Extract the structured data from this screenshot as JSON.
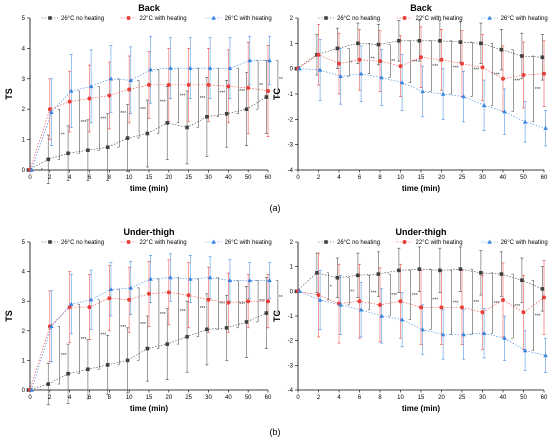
{
  "figure": {
    "sublabels": [
      "(a)",
      "(b)"
    ],
    "colors": {
      "no_heat": "#404040",
      "heat22": "#e8403a",
      "heat26": "#3a85e0"
    },
    "x_ticks": [
      0,
      2,
      4,
      6,
      8,
      10,
      15,
      20,
      25,
      30,
      40,
      50,
      60
    ]
  },
  "chart_data": [
    {
      "type": "line",
      "title": "Back",
      "xlabel": "time (min)",
      "ylabel": "TS",
      "ylim": [
        0,
        5
      ],
      "yticks": [
        0,
        1,
        2,
        3,
        4,
        5
      ],
      "x": [
        0,
        2,
        4,
        6,
        8,
        10,
        15,
        20,
        25,
        30,
        40,
        50,
        60
      ],
      "series": [
        {
          "name": "26°C no heating",
          "values": [
            0,
            0.35,
            0.55,
            0.65,
            0.75,
            1.05,
            1.2,
            1.55,
            1.4,
            1.75,
            1.85,
            2.0,
            2.4
          ],
          "err": [
            0,
            0.8,
            0.9,
            1.0,
            1.1,
            1.1,
            1.1,
            1.2,
            1.2,
            1.3,
            1.1,
            1.2,
            1.2
          ]
        },
        {
          "name": "22°C with heating",
          "values": [
            0,
            2.0,
            2.25,
            2.35,
            2.45,
            2.65,
            2.8,
            2.8,
            2.8,
            2.8,
            2.75,
            2.7,
            2.6
          ],
          "err": [
            0,
            1.0,
            1.0,
            1.1,
            1.1,
            1.1,
            1.1,
            1.2,
            1.2,
            1.2,
            1.2,
            1.5,
            1.5
          ]
        },
        {
          "name": "26°C with heating",
          "values": [
            0,
            1.9,
            2.6,
            2.75,
            3.0,
            2.95,
            3.3,
            3.35,
            3.35,
            3.35,
            3.35,
            3.6,
            3.6
          ],
          "err": [
            0,
            1.1,
            1.2,
            1.2,
            1.1,
            1.1,
            1.1,
            1.0,
            1.0,
            1.0,
            1.0,
            0.8,
            0.8
          ]
        }
      ],
      "annotations": [
        "*",
        "**",
        "***",
        "***",
        "***",
        "***",
        "***",
        "***",
        "***",
        "***",
        "***",
        "**",
        "**"
      ]
    },
    {
      "type": "line",
      "title": "Back",
      "xlabel": "time (min)",
      "ylabel": "TC",
      "ylim": [
        -4,
        2
      ],
      "yticks": [
        -4,
        -3,
        -2,
        -1,
        0,
        1,
        2
      ],
      "x": [
        0,
        2,
        4,
        6,
        8,
        10,
        15,
        20,
        25,
        30,
        40,
        50,
        60
      ],
      "series": [
        {
          "name": "26°C no heating",
          "values": [
            0,
            0.55,
            0.8,
            1.0,
            0.95,
            1.1,
            1.1,
            1.1,
            1.05,
            1.0,
            0.75,
            0.5,
            0.45
          ],
          "err": [
            0,
            0.8,
            0.8,
            0.8,
            0.8,
            0.8,
            0.8,
            0.8,
            0.8,
            0.8,
            0.8,
            0.9,
            0.9
          ]
        },
        {
          "name": "22°C with heating",
          "values": [
            0,
            0.55,
            0.2,
            0.35,
            0.3,
            0.1,
            0.45,
            0.35,
            0.2,
            0.05,
            -0.4,
            -0.25,
            -0.2
          ],
          "err": [
            0,
            1.2,
            1.2,
            1.2,
            1.2,
            1.2,
            1.2,
            1.2,
            1.3,
            1.3,
            1.3,
            1.3,
            1.3
          ]
        },
        {
          "name": "26°C with heating",
          "values": [
            0,
            -0.05,
            -0.3,
            -0.2,
            -0.35,
            -0.55,
            -0.9,
            -1.0,
            -1.1,
            -1.45,
            -1.7,
            -2.1,
            -2.35
          ],
          "err": [
            0,
            1.2,
            1.1,
            1.1,
            1.1,
            1.1,
            1.0,
            1.0,
            1.0,
            1.0,
            0.9,
            0.8,
            0.7
          ]
        }
      ],
      "annotations": [
        "",
        "",
        "*",
        "**",
        "**",
        "***",
        "***",
        "***",
        "***",
        "***",
        "***",
        "***",
        "***"
      ]
    },
    {
      "type": "line",
      "title": "Under-thigh",
      "xlabel": "time (min)",
      "ylabel": "TS",
      "ylim": [
        0,
        5
      ],
      "yticks": [
        0,
        1,
        2,
        3,
        4,
        5
      ],
      "x": [
        0,
        2,
        4,
        6,
        8,
        10,
        15,
        20,
        25,
        30,
        40,
        50,
        60
      ],
      "series": [
        {
          "name": "26°C no heating",
          "values": [
            0,
            0.2,
            0.55,
            0.7,
            0.85,
            1.0,
            1.4,
            1.55,
            1.8,
            2.05,
            2.1,
            2.3,
            2.6
          ],
          "err": [
            0,
            0.7,
            1.0,
            1.0,
            1.0,
            1.1,
            1.1,
            1.2,
            1.2,
            1.2,
            1.1,
            1.2,
            1.2
          ]
        },
        {
          "name": "22°C with heating",
          "values": [
            0,
            2.15,
            2.8,
            2.8,
            3.1,
            3.05,
            3.25,
            3.3,
            3.2,
            3.05,
            2.95,
            3.0,
            3.0
          ],
          "err": [
            0,
            1.2,
            1.2,
            1.1,
            1.1,
            1.1,
            1.1,
            1.1,
            1.1,
            1.1,
            1.0,
            0.9,
            0.9
          ]
        },
        {
          "name": "26°C with heating",
          "values": [
            0,
            2.15,
            2.9,
            3.05,
            3.4,
            3.45,
            3.75,
            3.8,
            3.75,
            3.8,
            3.7,
            3.7,
            3.7
          ],
          "err": [
            0,
            1.2,
            1.0,
            1.0,
            0.9,
            0.9,
            0.8,
            0.8,
            0.8,
            0.7,
            0.7,
            0.6,
            0.6
          ]
        }
      ],
      "annotations": [
        "",
        "***",
        "***",
        "***",
        "***",
        "***",
        "***",
        "***",
        "***",
        "***",
        "***",
        "***",
        "**"
      ]
    },
    {
      "type": "line",
      "title": "Under-thigh",
      "xlabel": "time (min)",
      "ylabel": "TC",
      "ylim": [
        -4,
        2
      ],
      "yticks": [
        -4,
        -3,
        -2,
        -1,
        0,
        1,
        2
      ],
      "x": [
        0,
        2,
        4,
        6,
        8,
        10,
        15,
        20,
        25,
        30,
        40,
        50,
        60
      ],
      "series": [
        {
          "name": "26°C no heating",
          "values": [
            0,
            0.75,
            0.55,
            0.65,
            0.7,
            0.85,
            0.9,
            0.85,
            0.9,
            0.75,
            0.7,
            0.45,
            0.1
          ],
          "err": [
            0,
            0.8,
            0.8,
            0.9,
            0.9,
            0.9,
            0.9,
            0.9,
            0.9,
            0.9,
            0.9,
            0.9,
            0.9
          ]
        },
        {
          "name": "22°C with heating",
          "values": [
            0,
            -0.15,
            -0.5,
            -0.4,
            -0.55,
            -0.4,
            -0.65,
            -0.65,
            -0.65,
            -0.85,
            -0.35,
            -0.85,
            -0.25
          ],
          "err": [
            0,
            1.7,
            1.6,
            1.5,
            1.5,
            1.5,
            1.5,
            1.5,
            1.5,
            1.5,
            1.5,
            1.5,
            1.5
          ]
        },
        {
          "name": "26°C with heating",
          "values": [
            0,
            -0.35,
            -0.55,
            -0.75,
            -1.0,
            -1.15,
            -1.55,
            -1.75,
            -1.75,
            -1.7,
            -1.9,
            -2.4,
            -2.6
          ],
          "err": [
            0,
            1.2,
            1.2,
            1.1,
            1.1,
            1.1,
            1.0,
            1.0,
            1.0,
            1.0,
            0.9,
            0.8,
            0.7
          ]
        }
      ],
      "annotations": [
        "",
        "*",
        "**",
        "***",
        "***",
        "***",
        "***",
        "***",
        "***",
        "***",
        "***",
        "***",
        "***"
      ]
    }
  ]
}
